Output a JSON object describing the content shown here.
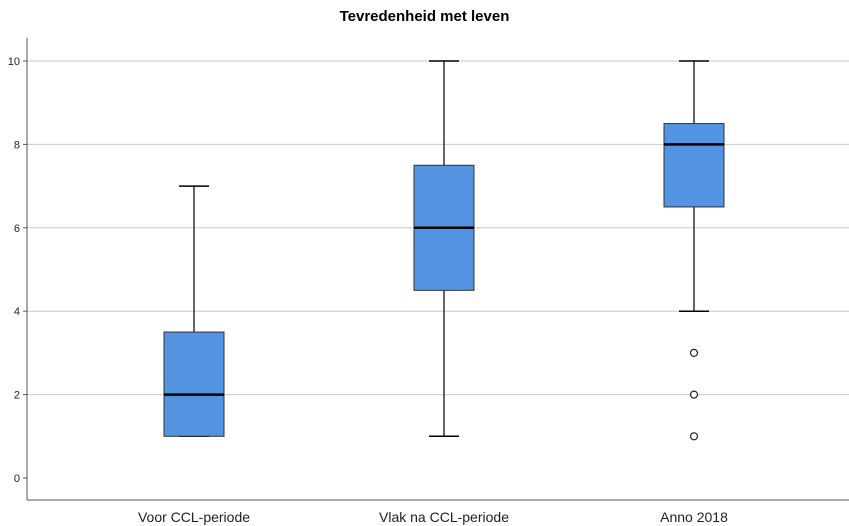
{
  "chart_data": {
    "type": "boxplot",
    "title": "Tevredenheid met leven",
    "xlabel": "",
    "ylabel": "",
    "ylim": [
      0,
      10
    ],
    "yticks": [
      0,
      2,
      4,
      6,
      8,
      10
    ],
    "grid": true,
    "categories": [
      "Voor CCL-periode",
      "Vlak na CCL-periode",
      "Anno 2018"
    ],
    "boxes": [
      {
        "min": 1,
        "q1": 1,
        "median": 2,
        "q3": 3.5,
        "max": 7,
        "outliers": []
      },
      {
        "min": 1,
        "q1": 4.5,
        "median": 6,
        "q3": 7.5,
        "max": 10,
        "outliers": []
      },
      {
        "min": 4,
        "q1": 6.5,
        "median": 8,
        "q3": 8.5,
        "max": 10,
        "outliers": [
          3,
          2,
          1
        ]
      }
    ],
    "colors": {
      "box": "#5294e2",
      "line": "#000000",
      "grid": "#c8c8c8"
    }
  }
}
